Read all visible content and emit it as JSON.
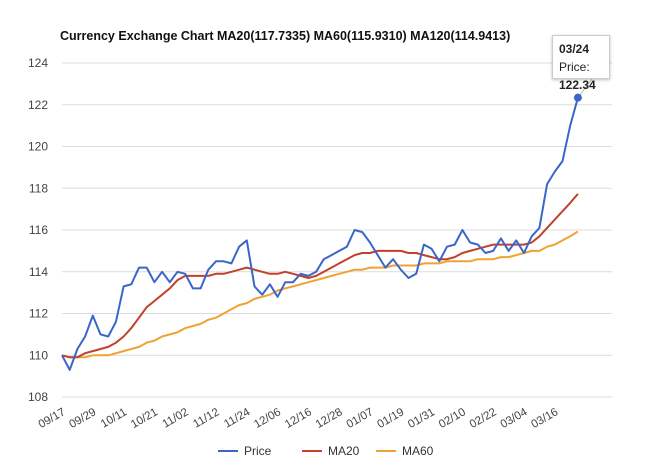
{
  "chart_data": {
    "type": "line",
    "title": "Currency Exchange Chart MA20(117.7335) MA60(115.9310) MA120(114.9413)",
    "xlabel": "",
    "ylabel": "",
    "ylim": [
      108,
      124
    ],
    "yticks": [
      108,
      110,
      112,
      114,
      116,
      118,
      120,
      122,
      124
    ],
    "grid": true,
    "legend_position": "bottom",
    "x_tick_labels": [
      "09/17",
      "09/29",
      "10/11",
      "10/21",
      "11/02",
      "11/12",
      "11/24",
      "12/06",
      "12/16",
      "12/28",
      "01/07",
      "01/19",
      "01/31",
      "02/10",
      "02/22",
      "03/04",
      "03/16"
    ],
    "x_tick_every": 4,
    "last_x": "03/24",
    "series": [
      {
        "name": "Price",
        "color": "#3a66c8",
        "values": [
          110.0,
          109.3,
          110.3,
          110.9,
          111.9,
          111.0,
          110.9,
          111.6,
          113.3,
          113.4,
          114.2,
          114.2,
          113.5,
          114.0,
          113.5,
          114.0,
          113.9,
          113.2,
          113.2,
          114.1,
          114.5,
          114.5,
          114.4,
          115.2,
          115.5,
          113.3,
          112.9,
          113.4,
          112.8,
          113.5,
          113.5,
          113.9,
          113.8,
          114.0,
          114.6,
          114.8,
          115.0,
          115.2,
          116.0,
          115.9,
          115.4,
          114.8,
          114.2,
          114.6,
          114.1,
          113.7,
          113.9,
          115.3,
          115.1,
          114.5,
          115.2,
          115.3,
          116.0,
          115.4,
          115.3,
          114.9,
          115.0,
          115.6,
          115.0,
          115.5,
          114.9,
          115.7,
          116.1,
          118.2,
          118.8,
          119.3,
          121.0,
          122.34
        ]
      },
      {
        "name": "MA20",
        "color": "#c2412a",
        "values": [
          110.0,
          109.9,
          109.9,
          110.1,
          110.2,
          110.3,
          110.4,
          110.6,
          110.9,
          111.3,
          111.8,
          112.3,
          112.6,
          112.9,
          113.2,
          113.6,
          113.8,
          113.8,
          113.8,
          113.8,
          113.9,
          113.9,
          114.0,
          114.1,
          114.2,
          114.1,
          114.0,
          113.9,
          113.9,
          114.0,
          113.9,
          113.8,
          113.7,
          113.8,
          114.0,
          114.2,
          114.4,
          114.6,
          114.8,
          114.9,
          114.9,
          115.0,
          115.0,
          115.0,
          115.0,
          114.9,
          114.9,
          114.8,
          114.7,
          114.6,
          114.6,
          114.7,
          114.9,
          115.0,
          115.1,
          115.2,
          115.3,
          115.3,
          115.3,
          115.3,
          115.3,
          115.4,
          115.7,
          116.1,
          116.5,
          116.9,
          117.3,
          117.73
        ]
      },
      {
        "name": "MA60",
        "color": "#f0a232",
        "values": [
          110.0,
          109.9,
          109.9,
          109.9,
          110.0,
          110.0,
          110.0,
          110.1,
          110.2,
          110.3,
          110.4,
          110.6,
          110.7,
          110.9,
          111.0,
          111.1,
          111.3,
          111.4,
          111.5,
          111.7,
          111.8,
          112.0,
          112.2,
          112.4,
          112.5,
          112.7,
          112.8,
          112.9,
          113.1,
          113.2,
          113.3,
          113.4,
          113.5,
          113.6,
          113.7,
          113.8,
          113.9,
          114.0,
          114.1,
          114.1,
          114.2,
          114.2,
          114.2,
          114.3,
          114.3,
          114.3,
          114.3,
          114.4,
          114.4,
          114.4,
          114.5,
          114.5,
          114.5,
          114.5,
          114.6,
          114.6,
          114.6,
          114.7,
          114.7,
          114.8,
          114.9,
          115.0,
          115.0,
          115.2,
          115.3,
          115.5,
          115.7,
          115.93
        ]
      }
    ],
    "tooltip": {
      "date": "03/24",
      "label": "Price: ",
      "value": "122.34"
    }
  }
}
